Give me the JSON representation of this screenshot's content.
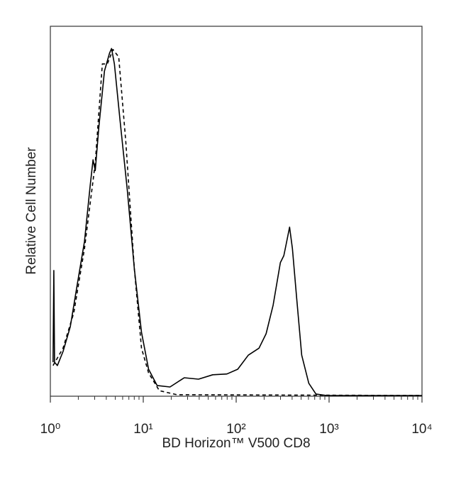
{
  "chart_data": {
    "type": "line",
    "x_label": "BD Horizon™ V500 CD8",
    "y_label": "Relative Cell Number",
    "xscale": "log",
    "xlim": [
      1,
      10000
    ],
    "xticks": [
      {
        "value": 1,
        "label": "10⁰"
      },
      {
        "value": 10,
        "label": "10¹"
      },
      {
        "value": 100,
        "label": "10²"
      },
      {
        "value": 1000,
        "label": "10³"
      },
      {
        "value": 10000,
        "label": "10⁴"
      }
    ],
    "ylim": [
      0,
      100
    ],
    "grid": false,
    "series": [
      {
        "color": "#000000",
        "line_style": "solid",
        "x": [
          1.07,
          1.09,
          1.11,
          1.19,
          1.37,
          1.64,
          1.95,
          2.33,
          2.69,
          2.88,
          3.04,
          3.32,
          3.82,
          4.33,
          4.56,
          4.89,
          5.63,
          6.73,
          8.02,
          9.57,
          11.4,
          14.1,
          19.4,
          27.6,
          39.3,
          55.9,
          79.5,
          104,
          135,
          176,
          210,
          250,
          299,
          326,
          344,
          376,
          403,
          448,
          507,
          605,
          722,
          940,
          10000
        ],
        "values": [
          9.2,
          34,
          9.2,
          8.3,
          12.1,
          18.8,
          30.3,
          41.8,
          57.2,
          63.9,
          61,
          72.6,
          87.9,
          92.7,
          94,
          89.8,
          74.5,
          55.7,
          34.5,
          17.3,
          7.3,
          2.9,
          2.5,
          5,
          4.6,
          5.8,
          6,
          7.3,
          11.1,
          13,
          16.9,
          24.6,
          36.1,
          38,
          40.9,
          45.7,
          39.9,
          26.5,
          11.1,
          3.5,
          0.6,
          0.2,
          0.2
        ]
      },
      {
        "color": "#000000",
        "line_style": "dashed",
        "x": [
          1.07,
          1.37,
          1.79,
          2.33,
          3.04,
          3.63,
          4.1,
          4.72,
          5.44,
          6.49,
          8.02,
          9.57,
          11.4,
          14.9,
          23.1,
          10000
        ],
        "values": [
          8.3,
          13,
          22.6,
          39.9,
          63,
          89.8,
          89.8,
          93.7,
          91.7,
          68.7,
          34.5,
          13,
          6.3,
          1.5,
          0.4,
          0.2
        ]
      }
    ]
  }
}
